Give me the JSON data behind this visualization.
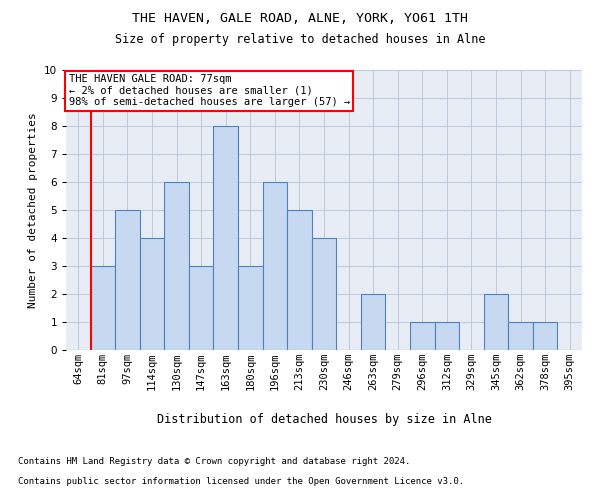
{
  "title1": "THE HAVEN, GALE ROAD, ALNE, YORK, YO61 1TH",
  "title2": "Size of property relative to detached houses in Alne",
  "xlabel": "Distribution of detached houses by size in Alne",
  "ylabel": "Number of detached properties",
  "categories": [
    "64sqm",
    "81sqm",
    "97sqm",
    "114sqm",
    "130sqm",
    "147sqm",
    "163sqm",
    "180sqm",
    "196sqm",
    "213sqm",
    "230sqm",
    "246sqm",
    "263sqm",
    "279sqm",
    "296sqm",
    "312sqm",
    "329sqm",
    "345sqm",
    "362sqm",
    "378sqm",
    "395sqm"
  ],
  "values": [
    0,
    3,
    5,
    4,
    6,
    3,
    8,
    3,
    6,
    5,
    4,
    0,
    2,
    0,
    1,
    1,
    0,
    2,
    1,
    1,
    0
  ],
  "bar_color": "#c6d9f1",
  "bar_edge_color": "#4f81bd",
  "ylim": [
    0,
    10
  ],
  "yticks": [
    0,
    1,
    2,
    3,
    4,
    5,
    6,
    7,
    8,
    9,
    10
  ],
  "annotation_text": "THE HAVEN GALE ROAD: 77sqm\n← 2% of detached houses are smaller (1)\n98% of semi-detached houses are larger (57) →",
  "footnote1": "Contains HM Land Registry data © Crown copyright and database right 2024.",
  "footnote2": "Contains public sector information licensed under the Open Government Licence v3.0.",
  "grid_color": "#b8c4d8",
  "background_color": "#ffffff",
  "plot_bg_color": "#e8edf5",
  "red_line_x": 0.5,
  "title1_fontsize": 9.5,
  "title2_fontsize": 8.5,
  "xlabel_fontsize": 8.5,
  "ylabel_fontsize": 8,
  "tick_fontsize": 7.5,
  "annotation_fontsize": 7.5,
  "footnote_fontsize": 6.5
}
